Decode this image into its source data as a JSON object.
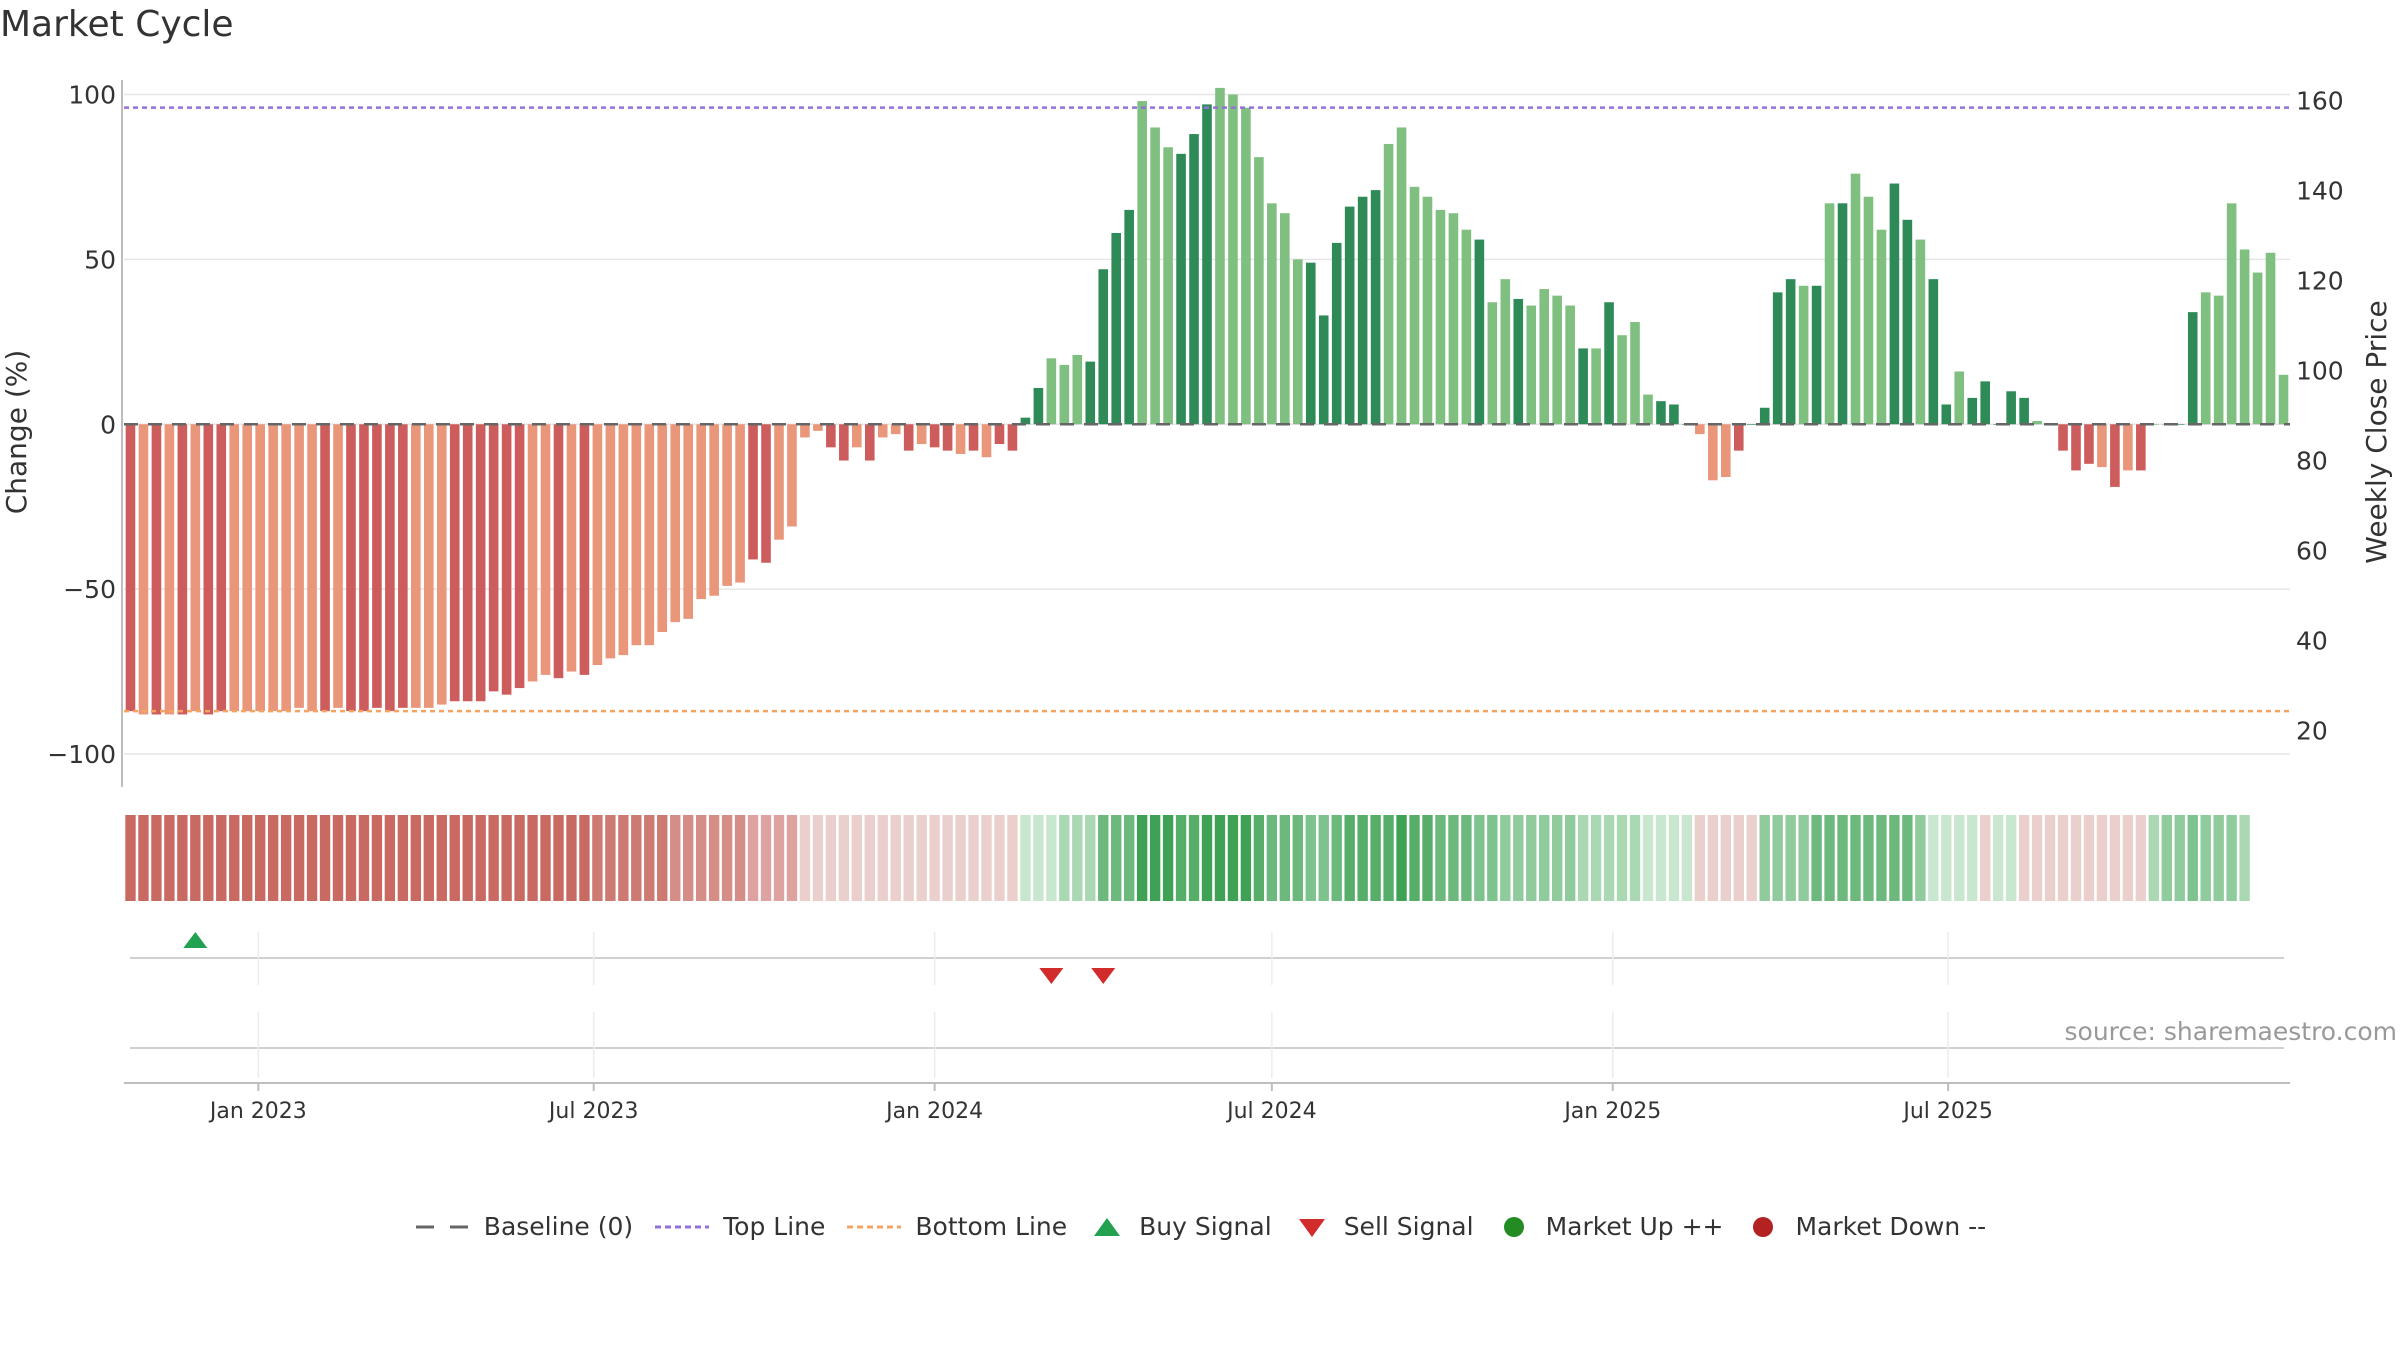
{
  "title": "Market Cycle",
  "source": "source: sharemaestro.com",
  "chart_data": {
    "type": "bar",
    "y_label": "Change (%)",
    "y2_label": "Weekly Close Price",
    "y_ticks": [
      100,
      50,
      0,
      -50,
      -100
    ],
    "y_tick_labels": [
      "100",
      "50",
      "0",
      "−50",
      "−100"
    ],
    "y2_ticks": [
      160,
      140,
      120,
      100,
      80,
      60,
      40,
      20
    ],
    "y_range": [
      -110,
      105
    ],
    "y2_range": [
      7.5,
      165
    ],
    "x_ticks": [
      {
        "date": "2023-01-01",
        "label": "Jan 2023"
      },
      {
        "date": "2023-07-01",
        "label": "Jul 2023"
      },
      {
        "date": "2024-01-01",
        "label": "Jan 2024"
      },
      {
        "date": "2024-07-01",
        "label": "Jul 2024"
      },
      {
        "date": "2025-01-01",
        "label": "Jan 2025"
      },
      {
        "date": "2025-07-01",
        "label": "Jul 2025"
      }
    ],
    "first_week": "2022-10-24",
    "baseline": 0,
    "top_line": 96,
    "bottom_line": -87,
    "values": [
      -87,
      -88,
      -88,
      -88,
      -88,
      -87,
      -88,
      -87,
      -87,
      -87,
      -87,
      -87,
      -87,
      -86,
      -87,
      -87,
      -86,
      -87,
      -87,
      -86,
      -87,
      -86,
      -86,
      -86,
      -85,
      -84,
      -84,
      -84,
      -81,
      -82,
      -80,
      -78,
      -76,
      -77,
      -75,
      -76,
      -73,
      -71,
      -70,
      -67,
      -67,
      -63,
      -60,
      -59,
      -53,
      -52,
      -49,
      -48,
      -41,
      -42,
      -35,
      -31,
      -4,
      -2,
      -7,
      -11,
      -7,
      -11,
      -4,
      -3,
      -8,
      -6,
      -7,
      -8,
      -9,
      -8,
      -10,
      -6,
      -8,
      2,
      11,
      20,
      18,
      21,
      19,
      47,
      58,
      65,
      98,
      90,
      84,
      82,
      88,
      97,
      102,
      100,
      96,
      81,
      67,
      64,
      50,
      49,
      33,
      55,
      66,
      69,
      71,
      85,
      90,
      72,
      69,
      65,
      64,
      59,
      56,
      37,
      44,
      38,
      36,
      41,
      39,
      36,
      23,
      23,
      37,
      27,
      31,
      9,
      7,
      6,
      0,
      -3,
      -17,
      -16,
      -8,
      0,
      5,
      40,
      44,
      42,
      42,
      67,
      67,
      76,
      69,
      59,
      73,
      62,
      56,
      44,
      6,
      16,
      8,
      13,
      0,
      10,
      8,
      1,
      0,
      -8,
      -14,
      -12,
      -13,
      -19,
      -14,
      -14,
      0,
      0,
      0,
      34,
      40,
      39,
      67,
      53,
      46,
      52,
      15
    ],
    "bar_shades": [
      "dark",
      "light",
      "dark",
      "light",
      "dark",
      "light",
      "dark",
      "dark",
      "light",
      "light",
      "light",
      "light",
      "light",
      "light",
      "light",
      "dark",
      "light",
      "dark",
      "dark",
      "dark",
      "dark",
      "dark",
      "light",
      "light",
      "light",
      "dark",
      "dark",
      "dark",
      "dark",
      "dark",
      "dark",
      "light",
      "light",
      "dark",
      "light",
      "dark",
      "light",
      "light",
      "light",
      "light",
      "light",
      "light",
      "light",
      "light",
      "light",
      "light",
      "light",
      "light",
      "dark",
      "dark",
      "light",
      "light",
      "light",
      "light",
      "dark",
      "dark",
      "light",
      "dark",
      "light",
      "light",
      "dark",
      "light",
      "dark",
      "dark",
      "light",
      "dark",
      "light",
      "dark",
      "dark",
      "dark",
      "dark",
      "light",
      "light",
      "light",
      "dark",
      "dark",
      "dark",
      "dark",
      "light",
      "light",
      "light",
      "dark",
      "dark",
      "dark",
      "light",
      "light",
      "light",
      "light",
      "light",
      "light",
      "light",
      "dark",
      "dark",
      "dark",
      "dark",
      "dark",
      "dark",
      "light",
      "light",
      "light",
      "light",
      "light",
      "light",
      "light",
      "dark",
      "light",
      "light",
      "dark",
      "light",
      "light",
      "light",
      "light",
      "dark",
      "light",
      "dark",
      "light",
      "light",
      "light",
      "dark",
      "dark",
      "dark",
      "light",
      "light",
      "light",
      "dark",
      "dark",
      "dark",
      "dark",
      "dark",
      "light",
      "dark",
      "light",
      "dark",
      "light",
      "light",
      "light",
      "dark",
      "dark",
      "light",
      "dark",
      "dark",
      "light",
      "dark",
      "dark",
      "dark",
      "dark",
      "dark",
      "light",
      "light",
      "dark",
      "dark",
      "dark",
      "light",
      "dark",
      "light",
      "dark",
      "light",
      "light",
      "dark",
      "dark",
      "light",
      "light"
    ],
    "price_band_colors": [
      "#c86a62",
      "#c86a62",
      "#c86a62",
      "#c86a62",
      "#c86a62",
      "#c86a62",
      "#c86a62",
      "#c86a62",
      "#c86a62",
      "#c86a62",
      "#c86a62",
      "#c86a62",
      "#c86a62",
      "#c86a62",
      "#c86a62",
      "#c86a62",
      "#c86a62",
      "#c86a62",
      "#c86a62",
      "#c86a62",
      "#c86a62",
      "#c86a62",
      "#c86a62",
      "#c86a62",
      "#c86a62",
      "#c86a62",
      "#c86a62",
      "#c86a62",
      "#c86a62",
      "#c86a62",
      "#c86a62",
      "#c86a62",
      "#c86a62",
      "#c86a62",
      "#c86a62",
      "#c86a62",
      "#cc7a72",
      "#cc7a72",
      "#cc7a72",
      "#cc7a72",
      "#cc7a72",
      "#cc7a72",
      "#d58d87",
      "#d58d87",
      "#d58d87",
      "#d58d87",
      "#d58d87",
      "#d58d87",
      "#dea3a0",
      "#dea3a0",
      "#dea3a0",
      "#dea3a0",
      "#ebcfcd",
      "#ebcfcd",
      "#ebcfcd",
      "#ebcfcd",
      "#ebcfcd",
      "#ebcfcd",
      "#ebcfcd",
      "#ebcfcd",
      "#ebcfcd",
      "#ebcfcd",
      "#ebcfcd",
      "#ebcfcd",
      "#ebcfcd",
      "#ebcfcd",
      "#ebcfcd",
      "#ebcfcd",
      "#ebcfcd",
      "#c9e6cf",
      "#c9e6cf",
      "#c9e6cf",
      "#a9d8b3",
      "#a9d8b3",
      "#a9d8b3",
      "#6db97d",
      "#6db97d",
      "#6db97d",
      "#3ea154",
      "#3ea154",
      "#3ea154",
      "#56ae69",
      "#56ae69",
      "#3ea154",
      "#3ea154",
      "#3ea154",
      "#3ea154",
      "#56ae69",
      "#6db97d",
      "#6db97d",
      "#6db97d",
      "#7ec38d",
      "#7ec38d",
      "#6db97d",
      "#56ae69",
      "#56ae69",
      "#56ae69",
      "#56ae69",
      "#3ea154",
      "#56ae69",
      "#56ae69",
      "#6db97d",
      "#6db97d",
      "#6db97d",
      "#7ec38d",
      "#7ec38d",
      "#8fcb9c",
      "#8fcb9c",
      "#8fcb9c",
      "#8fcb9c",
      "#8fcb9c",
      "#8fcb9c",
      "#a9d8b3",
      "#a9d8b3",
      "#a9d8b3",
      "#a9d8b3",
      "#a9d8b3",
      "#c9e6cf",
      "#c9e6cf",
      "#c9e6cf",
      "#c9e6cf",
      "#ebcfcd",
      "#ebcfcd",
      "#ebcfcd",
      "#ebcfcd",
      "#ebcfcd",
      "#8fcb9c",
      "#8fcb9c",
      "#8fcb9c",
      "#8fcb9c",
      "#6db97d",
      "#6db97d",
      "#6db97d",
      "#6db97d",
      "#6db97d",
      "#6db97d",
      "#6db97d",
      "#6db97d",
      "#8fcb9c",
      "#c9e6cf",
      "#c9e6cf",
      "#c9e6cf",
      "#c9e6cf",
      "#ebcfcd",
      "#c9e6cf",
      "#c9e6cf",
      "#ebcfcd",
      "#ebcfcd",
      "#ebcfcd",
      "#ebcfcd",
      "#ebcfcd",
      "#ebcfcd",
      "#ebcfcd",
      "#ebcfcd",
      "#ebcfcd",
      "#ebcfcd",
      "#a9d8b3",
      "#8fcb9c",
      "#8fcb9c",
      "#7ec38d",
      "#8fcb9c",
      "#8fcb9c",
      "#8fcb9c",
      "#a9d8b3"
    ],
    "buy_signals": [
      {
        "date": "2022-11-28"
      }
    ],
    "sell_signals": [
      {
        "date": "2024-03-04"
      },
      {
        "date": "2024-04-01"
      }
    ],
    "colors": {
      "up_dark": "#2e8b57",
      "up_light": "#7fbf7f",
      "down_dark": "#cd5c5c",
      "down_light": "#e9967a",
      "top_line": "#9370db",
      "bottom_line": "#f4a460",
      "baseline": "#666666",
      "buy": "#22a150",
      "sell": "#d22b2b",
      "market_up": "#228b22",
      "market_down": "#b22222"
    }
  },
  "legend": {
    "items": [
      {
        "label": "Baseline (0)"
      },
      {
        "label": "Top Line"
      },
      {
        "label": "Bottom Line"
      },
      {
        "label": "Buy Signal"
      },
      {
        "label": "Sell Signal"
      },
      {
        "label": "Market Up ++"
      },
      {
        "label": "Market Down --"
      }
    ]
  }
}
